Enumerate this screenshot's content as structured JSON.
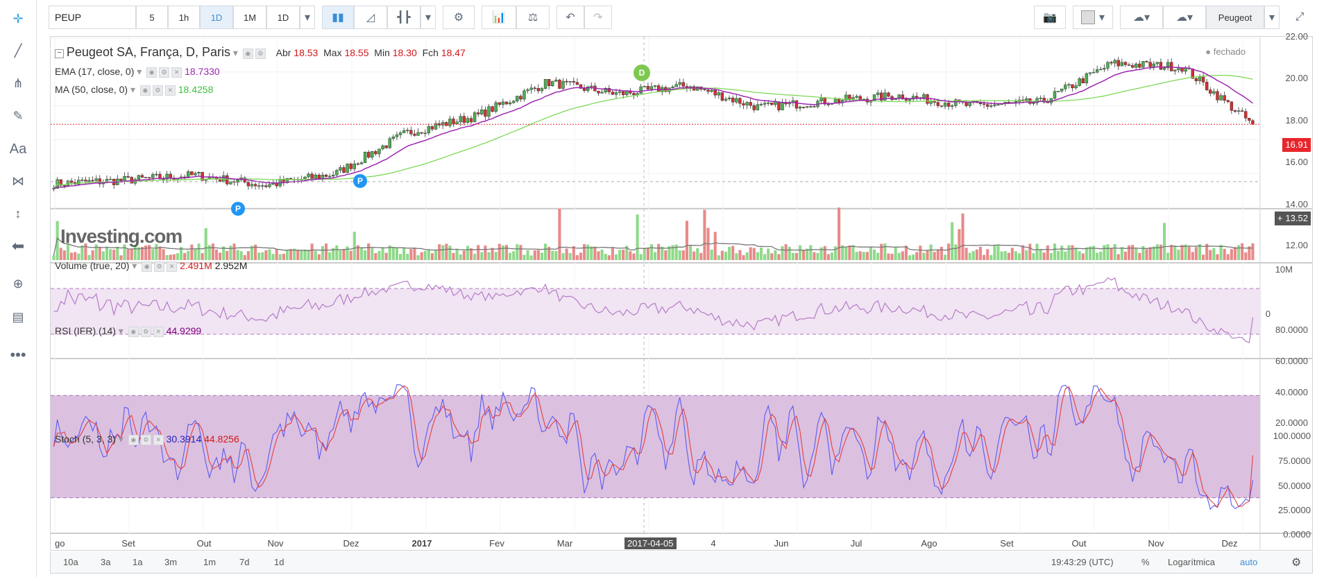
{
  "toolbar": {
    "symbol": "PEUP",
    "intervals": [
      "5",
      "1h",
      "1D",
      "1M",
      "1D"
    ],
    "active_interval": "1D",
    "account_label": "Peugeot"
  },
  "legend": {
    "title": "Peugeot SA, França, D, Paris",
    "ohlc_labels": [
      "Abr",
      "Max",
      "Min",
      "Fch"
    ],
    "ohlc_values": [
      "18.53",
      "18.55",
      "18.30",
      "18.47"
    ],
    "status": "fechado",
    "ema_label": "EMA (17, close, 0)",
    "ema_value": "18.7330",
    "ma_label": "MA (50, close, 0)",
    "ma_value": "18.4258",
    "volume_label": "Volume (true, 20)",
    "volume_value1": "2.491M",
    "volume_value2": "2.952M",
    "rsi_label": "RSI (IFR) (14)",
    "rsi_value": "44.9299",
    "stoch_label": "Stoch (5, 3, 3)",
    "stoch_value1": "30.3914",
    "stoch_value2": "44.8256"
  },
  "watermark": "Investing.com",
  "markers": [
    {
      "label": "P",
      "color": "#2196f3"
    },
    {
      "label": "P",
      "color": "#2196f3"
    },
    {
      "label": "D",
      "color": "#7ec850"
    }
  ],
  "price_axis": {
    "ticks": [
      "22.00",
      "20.00",
      "18.00",
      "16.00",
      "14.00",
      "12.00"
    ],
    "last_price": "16.91",
    "crosshair_price": "13.52"
  },
  "volume_axis": {
    "ticks": [
      "10M",
      "0"
    ]
  },
  "rsi_axis": {
    "ticks": [
      "80.0000",
      "60.0000",
      "40.0000",
      "20.0000"
    ]
  },
  "stoch_axis": {
    "ticks": [
      "100.0000",
      "75.0000",
      "50.0000",
      "25.0000",
      "0.0000"
    ]
  },
  "time_axis": {
    "labels": [
      "go",
      "Set",
      "Out",
      "Nov",
      "Dez",
      "2017",
      "Fev",
      "Mar",
      "4",
      "Jun",
      "Jul",
      "Ago",
      "Set",
      "Out",
      "Nov",
      "Dez"
    ],
    "crosshair_date": "2017-04-05"
  },
  "bottom_bar": {
    "ranges": [
      "10a",
      "3a",
      "1a",
      "3m",
      "1m",
      "7d",
      "1d"
    ],
    "clock": "19:43:29 (UTC)",
    "percent": "%",
    "log": "Logarítmica",
    "auto": "auto"
  },
  "colors": {
    "up": "#4caf50",
    "down": "#d32f2f",
    "ema": "#9c27b0",
    "ma": "#7ed957",
    "vol_up": "#8fd98a",
    "vol_down": "#e88a8a",
    "rsi": "#b47bc8",
    "rsi_band": "#f1e4f3",
    "stoch_k": "#5b5bf0",
    "stoch_d": "#e04040",
    "stoch_band": "#dcc0e0"
  },
  "chart_data": {
    "type": "candlestick",
    "title": "Peugeot SA, França, D, Paris",
    "x": [
      "2016-08",
      "2016-09",
      "2016-10",
      "2016-11",
      "2016-12",
      "2017-01",
      "2017-02",
      "2017-03",
      "2017-04",
      "2017-05",
      "2017-06",
      "2017-07",
      "2017-08",
      "2017-09",
      "2017-10",
      "2017-11",
      "2017-12"
    ],
    "close": [
      13.4,
      13.6,
      13.9,
      13.3,
      14.0,
      16.4,
      17.4,
      19.4,
      18.7,
      19.2,
      17.9,
      18.3,
      18.6,
      18.0,
      18.2,
      20.5,
      20.3
    ],
    "close_tail": [
      16.91
    ],
    "ylim": [
      12,
      22
    ],
    "last_price": 16.91,
    "series": [
      {
        "name": "EMA (17, close, 0)",
        "last": 18.733
      },
      {
        "name": "MA (50, close, 0)",
        "last": 18.4258
      }
    ],
    "volume_last": [
      2.491,
      2.952
    ],
    "volume_ylim": [
      0,
      12
    ],
    "rsi_last": 44.9299,
    "rsi_band": [
      30,
      70
    ],
    "stoch_last": [
      30.3914,
      44.8256
    ],
    "stoch_band": [
      20,
      80
    ]
  }
}
